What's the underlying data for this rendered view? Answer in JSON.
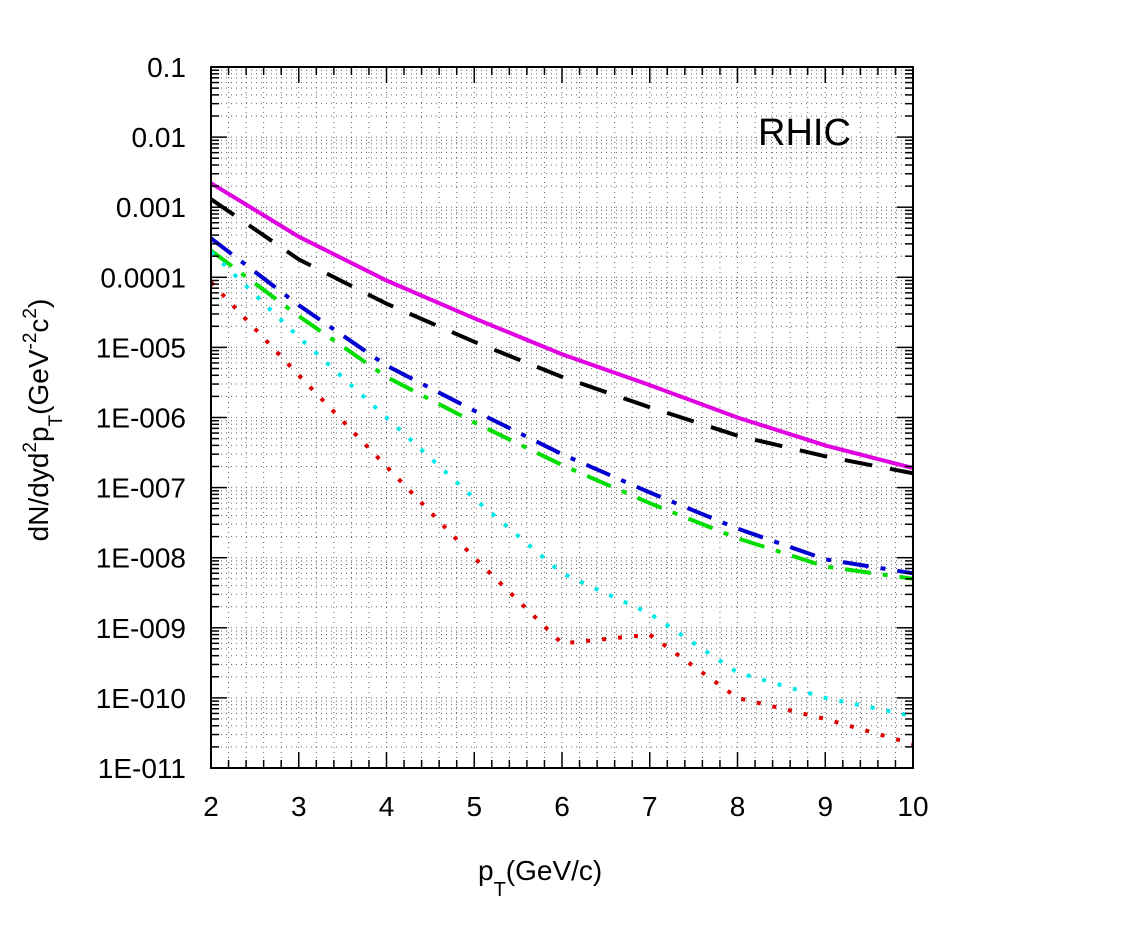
{
  "chart_data": {
    "type": "line",
    "annotation": "RHIC",
    "x_scale": "linear",
    "y_scale": "log",
    "xlim": [
      2,
      10
    ],
    "ylim": [
      1e-11,
      0.1
    ],
    "grid": true,
    "x_ticks": [
      "2",
      "3",
      "4",
      "5",
      "6",
      "7",
      "8",
      "9",
      "10"
    ],
    "y_ticks": [
      "1E-011",
      "1E-010",
      "1E-009",
      "1E-008",
      "1E-007",
      "1E-006",
      "1E-005",
      "0.0001",
      "0.001",
      "0.01",
      "0.1"
    ],
    "xlabel": {
      "main": "p",
      "sub": "T",
      "rest": "(GeV/c)"
    },
    "ylabel": {
      "p1": "dN/dyd",
      "sup1": "2",
      "p2": "p",
      "sub1": "T",
      "p3": "(GeV",
      "sup2": "-2",
      "p4": "c",
      "sup3": "2",
      "p5": ")"
    },
    "x": [
      2,
      3,
      4,
      5,
      6,
      7,
      8,
      9,
      10
    ],
    "series": [
      {
        "color": "#e000e0",
        "style": "solid",
        "values": [
          0.0022,
          0.00038,
          9e-05,
          2.6e-05,
          8e-06,
          2.9e-06,
          1e-06,
          4e-07,
          1.9e-07
        ]
      },
      {
        "color": "#000000",
        "style": "dash",
        "values": [
          0.0013,
          0.00018,
          4.2e-05,
          1.2e-05,
          3.8e-06,
          1.4e-06,
          5.5e-07,
          2.8e-07,
          1.6e-07
        ]
      },
      {
        "color": "#0000d0",
        "style": "dashdot",
        "values": [
          0.00036,
          4e-05,
          5.5e-06,
          1.25e-06,
          3e-07,
          8.5e-08,
          2.6e-08,
          9.5e-09,
          6e-09
        ]
      },
      {
        "color": "#00dd00",
        "style": "dashdot",
        "values": [
          0.00024,
          2.8e-05,
          3.8e-06,
          8.5e-07,
          2.1e-07,
          6e-08,
          1.9e-08,
          7.5e-09,
          5e-09
        ]
      },
      {
        "color": "#00e8e8",
        "style": "dot",
        "values": [
          0.00023,
          1.4e-05,
          1e-06,
          7e-08,
          6e-09,
          1.6e-09,
          2.3e-10,
          1e-10,
          5.5e-11
        ]
      },
      {
        "color": "#dd0000",
        "style": "dot",
        "values": [
          8.5e-05,
          4e-06,
          2e-07,
          1e-08,
          6e-10,
          8e-10,
          1e-10,
          5e-11,
          2.2e-11
        ]
      }
    ]
  }
}
